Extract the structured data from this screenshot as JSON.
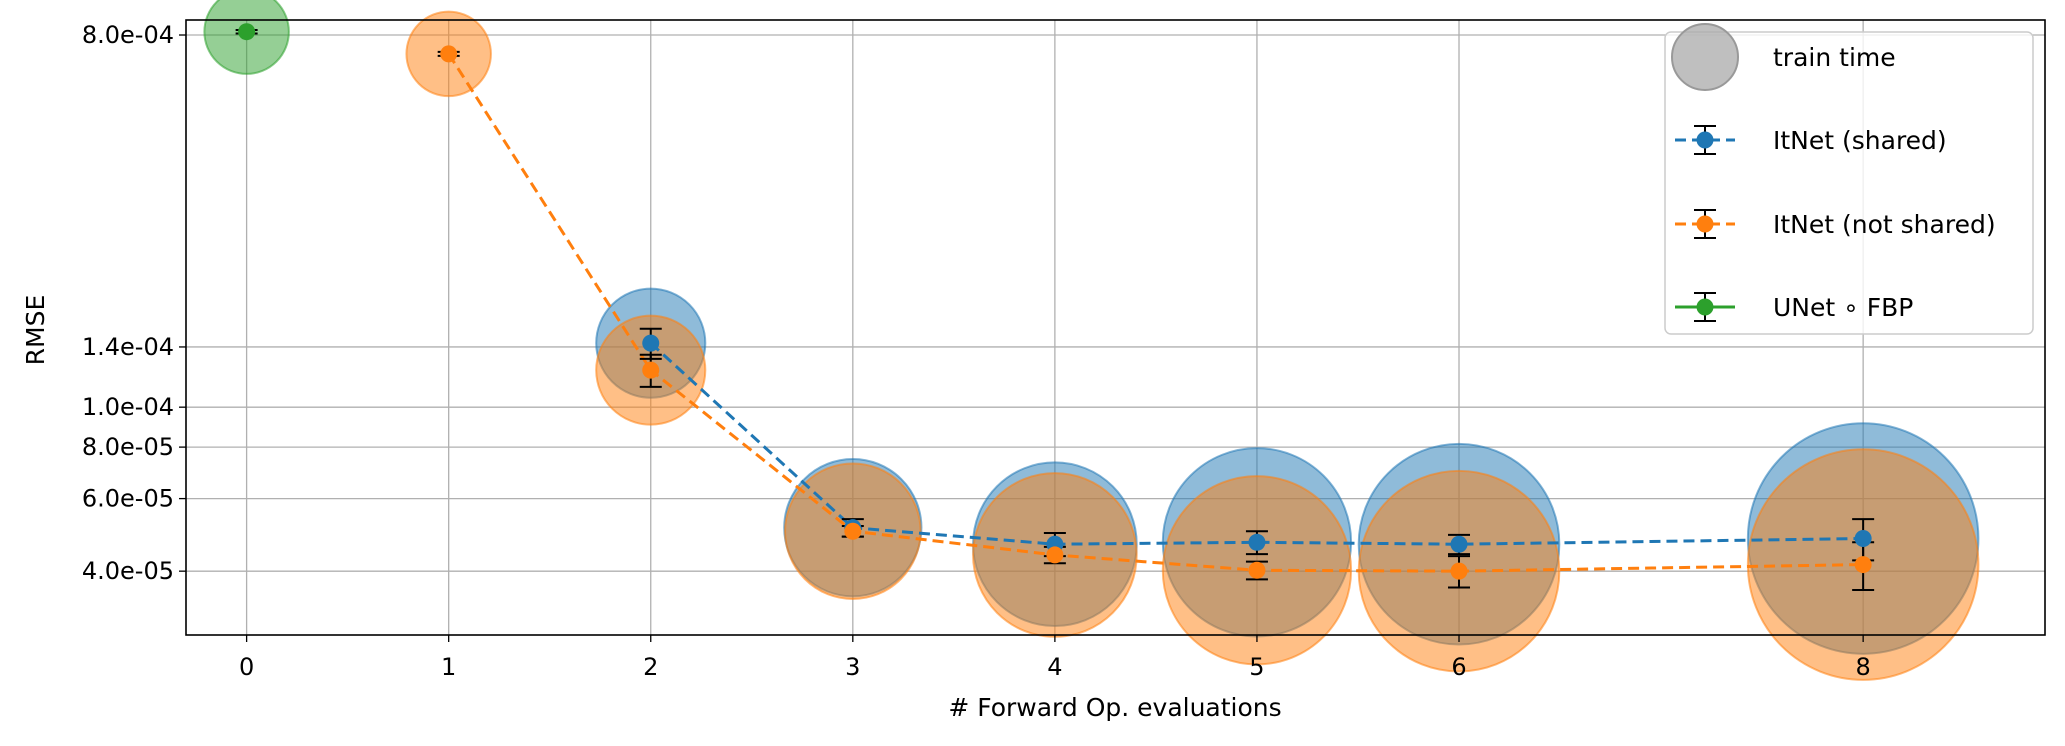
{
  "chart_data": {
    "type": "scatter",
    "title": "",
    "xlabel": "# Forward Op. evaluations",
    "ylabel": "RMSE",
    "xlim": [
      -0.3,
      8.9
    ],
    "ylim": [
      2.8e-05,
      0.00087
    ],
    "yscale": "log",
    "grid": true,
    "x_ticks": [
      0,
      1,
      2,
      3,
      4,
      5,
      6,
      8
    ],
    "x_tick_labels": [
      "0",
      "1",
      "2",
      "3",
      "4",
      "5",
      "6",
      "8"
    ],
    "y_ticks": [
      4e-05,
      6e-05,
      8e-05,
      0.0001,
      0.00014,
      0.0008
    ],
    "y_tick_labels": [
      "4.0e-05",
      "6.0e-05",
      "8.0e-05",
      "1.0e-04",
      "1.4e-04",
      "8.0e-04"
    ],
    "legend_position": "top-right",
    "legend_items": [
      {
        "label": "train time",
        "kind": "bubble",
        "color": "#aaaaaa"
      },
      {
        "label": "ItNet (shared)",
        "kind": "errorbar",
        "color": "#1f77b4"
      },
      {
        "label": "ItNet (not shared)",
        "kind": "errorbar",
        "color": "#ff7f0e"
      },
      {
        "label": "UNet ∘ FBP",
        "kind": "errorbar",
        "color": "#2ca02c"
      }
    ],
    "series": [
      {
        "name": "ItNet (shared)",
        "color": "#1f77b4",
        "linestyle": "dashed",
        "connect": true,
        "x": [
          2,
          3,
          4,
          5,
          6,
          8
        ],
        "y": [
          0.000143,
          5.1e-05,
          4.65e-05,
          4.7e-05,
          4.65e-05,
          4.8e-05
        ],
        "yerr": [
          1.2e-05,
          2.5e-06,
          3e-06,
          3e-06,
          2.5e-06,
          5.5e-06
        ],
        "train_time": [
          0.62,
          0.78,
          0.93,
          1.07,
          1.14,
          1.31
        ]
      },
      {
        "name": "ItNet (not shared)",
        "color": "#ff7f0e",
        "linestyle": "dashed",
        "connect": true,
        "x": [
          1,
          2,
          3,
          4,
          5,
          6,
          8
        ],
        "y": [
          0.00072,
          0.000123,
          5e-05,
          4.38e-05,
          4.02e-05,
          4e-05,
          4.15e-05
        ],
        "yerr": [
          8e-06,
          1.1e-05,
          1.5e-06,
          2e-06,
          2e-06,
          3.5e-06,
          5.5e-06
        ],
        "train_time": [
          0.48,
          0.62,
          0.77,
          0.93,
          1.07,
          1.14,
          1.31
        ]
      },
      {
        "name": "UNet ∘ FBP",
        "color": "#2ca02c",
        "linestyle": "solid",
        "connect": false,
        "x": [
          0
        ],
        "y": [
          0.000815
        ],
        "yerr": [
          8e-06
        ],
        "train_time": [
          0.48
        ]
      }
    ]
  }
}
